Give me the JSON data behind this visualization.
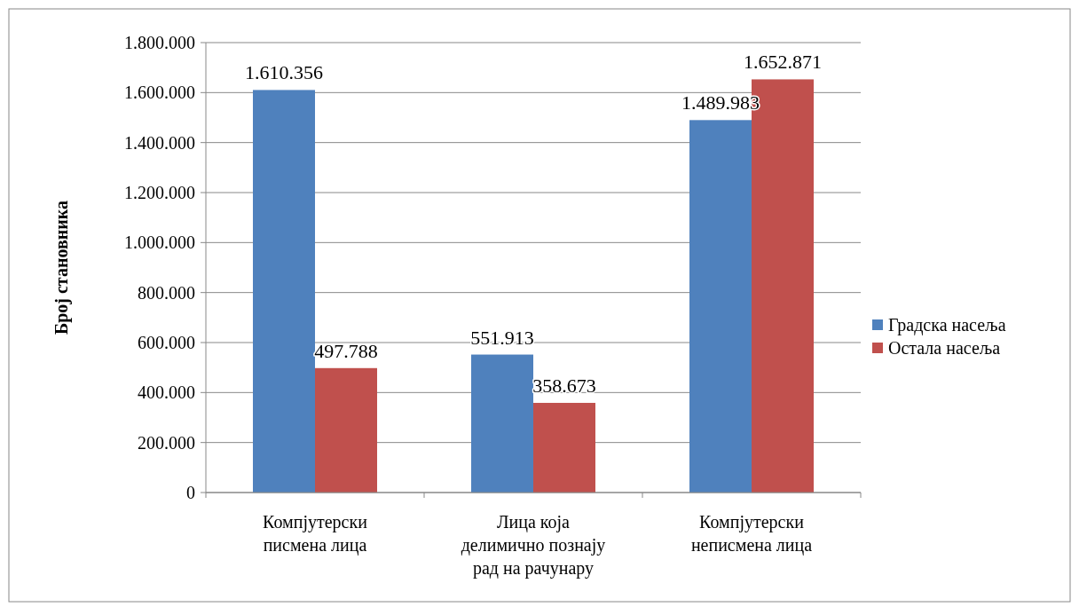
{
  "chart_data": {
    "type": "bar",
    "ylabel": "Број становника",
    "categories": [
      "Компјутерски писмена лица",
      "Лица која делимично познају рад на рачунару",
      "Компјутерски неписмена лица"
    ],
    "series": [
      {
        "name": "Градска насеља",
        "color": "#4f81bd",
        "values": [
          1610356,
          551913,
          1489983
        ],
        "value_labels": [
          "1.610.356",
          "551.913",
          "1.489.983"
        ]
      },
      {
        "name": "Остала насеља",
        "color": "#c0504d",
        "values": [
          497788,
          358673,
          1652871
        ],
        "value_labels": [
          "497.788",
          "358.673",
          "1.652.871"
        ]
      }
    ],
    "ylim": [
      0,
      1800000
    ],
    "yticks": [
      0,
      {
        "value": 200000,
        "label": "200.000"
      },
      {
        "value": 400000,
        "label": "400.000"
      },
      {
        "value": 600000,
        "label": "600.000"
      },
      {
        "value": 800000,
        "label": "800.000"
      },
      {
        "value": 1000000,
        "label": "1.000.000"
      },
      {
        "value": 1200000,
        "label": "1.200.000"
      },
      {
        "value": 1400000,
        "label": "1.400.000"
      },
      {
        "value": 1600000,
        "label": "1.600.000"
      },
      {
        "value": 1800000,
        "label": "1.800.000"
      }
    ],
    "grid": "y",
    "legend": "right"
  }
}
